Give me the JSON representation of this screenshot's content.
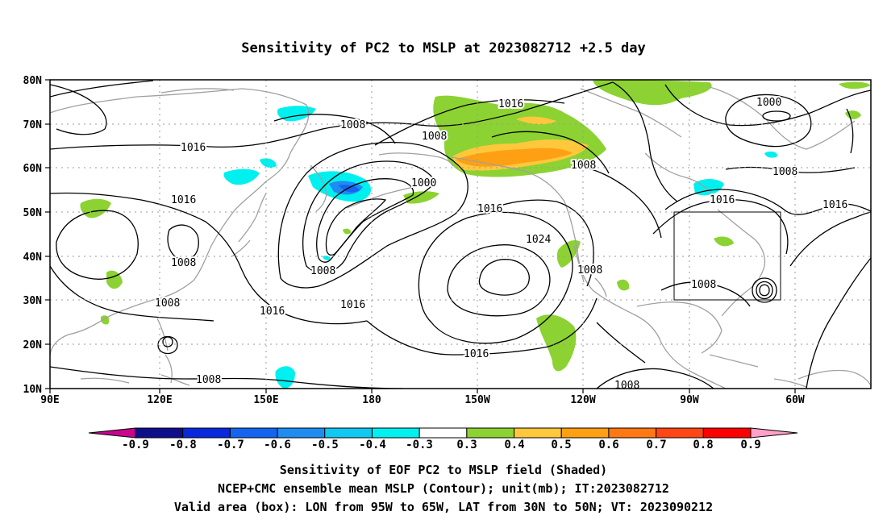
{
  "title": "Sensitivity of PC2 to MSLP at 2023082712 +2.5 day",
  "lat_labels": [
    "80N",
    "70N",
    "60N",
    "50N",
    "40N",
    "30N",
    "20N",
    "10N"
  ],
  "lon_labels": [
    "90E",
    "120E",
    "150E",
    "180",
    "150W",
    "120W",
    "90W",
    "60W"
  ],
  "contour_labels": [
    "1016",
    "1008",
    "1008",
    "1000",
    "1008",
    "1016",
    "1016",
    "1008",
    "1000",
    "1016",
    "1024",
    "1008",
    "1016",
    "1008",
    "1016",
    "1008",
    "1016",
    "1016",
    "1008",
    "1008",
    "1008",
    "1008"
  ],
  "colorbar": {
    "labels": [
      "-0.9",
      "-0.8",
      "-0.7",
      "-0.6",
      "-0.5",
      "-0.4",
      "-0.3",
      "0.3",
      "0.4",
      "0.5",
      "0.6",
      "0.7",
      "0.8",
      "0.9"
    ],
    "colors": [
      "#c8058c",
      "#0e0e8c",
      "#0a28dc",
      "#1464f0",
      "#1e8cf0",
      "#10c8f0",
      "#00f0f0",
      "#ffffff",
      "#8cd232",
      "#ffc83c",
      "#ffa014",
      "#ff7814",
      "#ff4614",
      "#ff0000",
      "#ffa0c8"
    ]
  },
  "caption": {
    "line1": "Sensitivity of EOF PC2 to MSLP field (Shaded)",
    "line2": "NCEP+CMC ensemble mean MSLP (Contour); unit(mb); IT:2023082712",
    "line3": "Valid area (box): LON from 95W to 65W, LAT from 30N to 50N; VT: 2023090212"
  },
  "valid_box": {
    "lon_min": -95,
    "lon_max": -65,
    "lat_min": 30,
    "lat_max": 50
  }
}
